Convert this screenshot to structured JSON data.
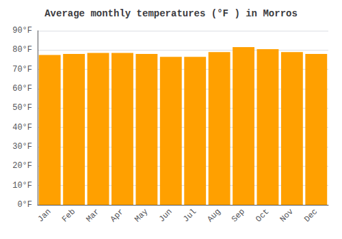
{
  "chart_data": {
    "type": "bar",
    "title": "Average monthly temperatures (°F ) in Morros",
    "categories": [
      "Jan",
      "Feb",
      "Mar",
      "Apr",
      "May",
      "Jun",
      "Jul",
      "Aug",
      "Sep",
      "Oct",
      "Nov",
      "Dec"
    ],
    "values": [
      77.5,
      78.0,
      78.5,
      78.5,
      78.0,
      76.5,
      76.5,
      79.0,
      81.5,
      80.5,
      79.0,
      78.0
    ],
    "color": "#FFA000",
    "ylim": [
      0,
      90
    ],
    "yticks": [
      {
        "value": 0,
        "label": "0°F"
      },
      {
        "value": 10,
        "label": "10°F"
      },
      {
        "value": 20,
        "label": "20°F"
      },
      {
        "value": 30,
        "label": "30°F"
      },
      {
        "value": 40,
        "label": "40°F"
      },
      {
        "value": 50,
        "label": "50°F"
      },
      {
        "value": 60,
        "label": "60°F"
      },
      {
        "value": 70,
        "label": "70°F"
      },
      {
        "value": 80,
        "label": "80°F"
      },
      {
        "value": 90,
        "label": "90°F"
      }
    ],
    "grid": true
  }
}
